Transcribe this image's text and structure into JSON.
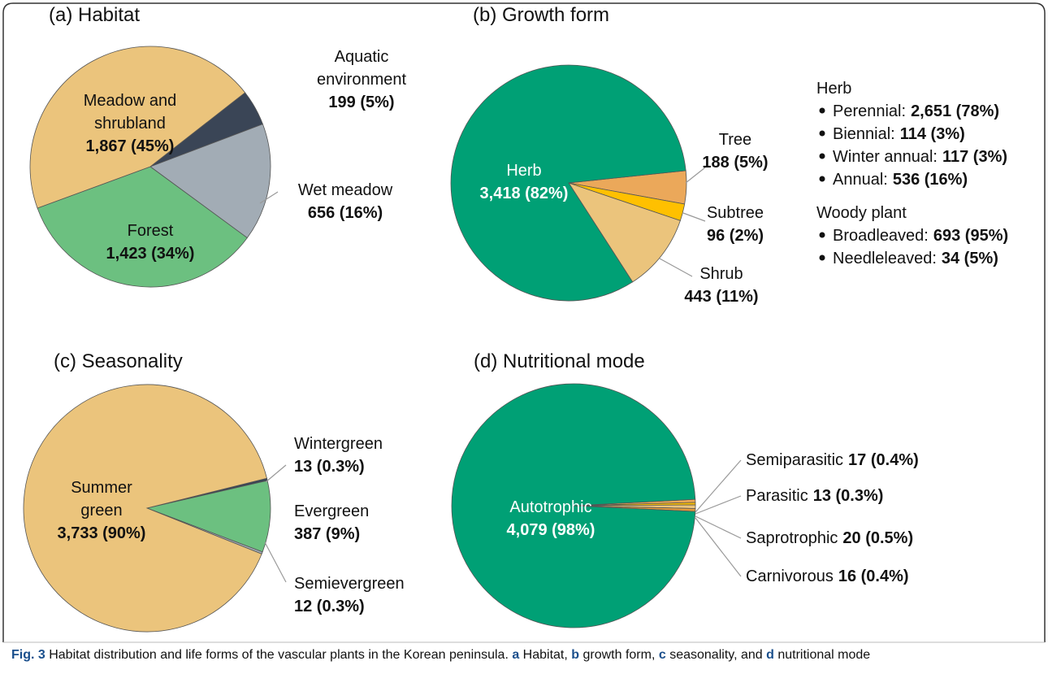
{
  "chart_data": [
    {
      "type": "pie",
      "title": "(a) Habitat",
      "startangle": 52,
      "categories": [
        "Aquatic\nenvironment",
        "Wet meadow",
        "Forest",
        "Meadow and\nshrubland"
      ],
      "values": [
        199,
        656,
        1423,
        1867
      ],
      "value_labels": [
        "199 (5%)",
        "656 (16%)",
        "1,423 (34%)",
        "1,867 (45%)"
      ],
      "colors": [
        "#3a4556",
        "#a2acb5",
        "#6cc080",
        "#ebc47c"
      ]
    },
    {
      "type": "pie",
      "title": "(b) Growth form",
      "startangle": 84,
      "categories": [
        "Tree",
        "Subtree",
        "Shrub",
        "Herb"
      ],
      "values": [
        188,
        96,
        443,
        3418
      ],
      "value_labels": [
        "188 (5%)",
        "96 (2%)",
        "443 (11%)",
        "3,418 (82%)"
      ],
      "colors": [
        "#eba85a",
        "#ffc000",
        "#ebc47c",
        "#00a075"
      ]
    },
    {
      "type": "pie",
      "title": "(c) Seasonality",
      "startangle": 76,
      "categories": [
        "Wintergreen",
        "Evergreen",
        "Semievergreen",
        "Summer\ngreen"
      ],
      "values": [
        13,
        387,
        12,
        3733
      ],
      "value_labels": [
        "13 (0.3%)",
        "387 (9%)",
        "12 (0.3%)",
        "3,733 (90%)"
      ],
      "colors": [
        "#3a4556",
        "#6cc080",
        "#a2acb5",
        "#ebc47c"
      ]
    },
    {
      "type": "pie",
      "title": "(d) Nutritional mode",
      "startangle": 87,
      "categories": [
        "Semiparasitic",
        "Parasitic",
        "Saprotrophic",
        "Carnivorous",
        "Autotrophic"
      ],
      "values": [
        17,
        13,
        20,
        16,
        4079
      ],
      "value_labels": [
        "17 (0.4%)",
        "13 (0.3%)",
        "20 (0.5%)",
        "16 (0.4%)",
        "4,079 (98%)"
      ],
      "colors": [
        "#eba85a",
        "#ffc000",
        "#ebc47c",
        "#e39a3b",
        "#00a075"
      ]
    }
  ],
  "notes": [
    {
      "title": "Herb",
      "items": [
        {
          "name": "Perennial:",
          "value": 2651,
          "value_label": "2,651 (78%)"
        },
        {
          "name": "Biennial:",
          "value": 114,
          "value_label": "114 (3%)"
        },
        {
          "name": "Winter annual:",
          "value": 117,
          "value_label": "117 (3%)"
        },
        {
          "name": "Annual:",
          "value": 536,
          "value_label": "536 (16%)"
        }
      ]
    },
    {
      "title": "Woody plant",
      "items": [
        {
          "name": "Broadleaved:",
          "value": 693,
          "value_label": "693 (95%)"
        },
        {
          "name": "Needleleaved:",
          "value": 34,
          "value_label": "34 (5%)"
        }
      ]
    }
  ],
  "caption": [
    {
      "text": "Fig. 3",
      "bold": true
    },
    {
      "text": " Habitat distribution and life forms of the vascular plants in the Korean peninsula. ",
      "bold": false
    },
    {
      "text": "a",
      "bold": true
    },
    {
      "text": " Habitat, ",
      "bold": false
    },
    {
      "text": "b",
      "bold": true
    },
    {
      "text": " growth form, ",
      "bold": false
    },
    {
      "text": "c",
      "bold": true
    },
    {
      "text": " seasonality, and ",
      "bold": false
    },
    {
      "text": "d",
      "bold": true
    },
    {
      "text": " nutritional mode",
      "bold": false
    }
  ]
}
